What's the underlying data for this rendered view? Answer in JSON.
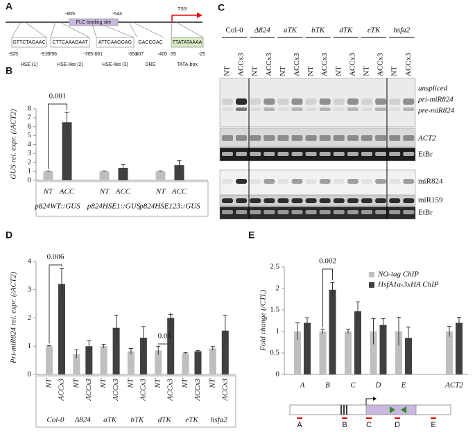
{
  "panel_a": {
    "letter": "A",
    "flc_start": "-805",
    "flc_end": "-544",
    "flc_label": "FLC binding site",
    "tss": "TSS",
    "elements": [
      {
        "sequence": "GTTCTAGAAC",
        "start": "-925",
        "end": "-915",
        "label": "HSE (1)"
      },
      {
        "sequence": "CTTCAAAGAAT",
        "start": "-796",
        "end": "-785",
        "label": "HSE-like (2)"
      },
      {
        "sequence": "ATTCAAGGAG",
        "start": "-661",
        "end": "-651",
        "label": "HSE-like (3)"
      },
      {
        "sequence": "GACCGAC",
        "start": "-407",
        "end": "-400",
        "label": "DRE"
      },
      {
        "sequence": "TTATATAAAA",
        "start": "-35",
        "end": "-25",
        "label": "TATA-box"
      }
    ]
  },
  "panel_c": {
    "letter": "C",
    "genotypes": [
      "Col-0",
      "Δ824",
      "aTK",
      "bTK",
      "dTK",
      "eTK",
      "hsfa2"
    ],
    "treatments": [
      "NT",
      "ACCx3"
    ],
    "rows": [
      "unspliced",
      "pri-miR824",
      "pre-miR824",
      "ACT2",
      "EtBr",
      "miR824",
      "miR159",
      "EtBr"
    ]
  },
  "chart_data": [
    {
      "type": "bar",
      "panel": "B",
      "ylabel": "GUS rel. expr. (/ACT2)",
      "categories": [
        "p824WT::GUS",
        "p824HSE1::GUS",
        "p824HSE123::GUS"
      ],
      "series": [
        {
          "name": "NT",
          "color": "#bfbfbf",
          "values": [
            1,
            1,
            1
          ],
          "errors": [
            0.03,
            0.03,
            0.03
          ]
        },
        {
          "name": "ACC",
          "color": "#404040",
          "values": [
            6.5,
            1.4,
            1.7
          ],
          "errors": [
            1.1,
            0.35,
            0.5
          ]
        }
      ],
      "ylim": [
        0,
        8
      ],
      "yticks": [
        0,
        1,
        2,
        3,
        4,
        5,
        6,
        7,
        8
      ],
      "annotations": [
        "0.001"
      ]
    },
    {
      "type": "bar",
      "panel": "D",
      "ylabel": "Pri-miR824 rel. expr. (/ACT2)",
      "categories": [
        "Col-0",
        "Δ824",
        "aTK",
        "bTK",
        "dTK",
        "eTK",
        "hsfa2"
      ],
      "series": [
        {
          "name": "NT",
          "color": "#bfbfbf",
          "values": [
            1,
            0.72,
            1.0,
            0.82,
            0.85,
            0.75,
            0.92
          ],
          "errors": [
            0.02,
            0.15,
            0.07,
            0.1,
            0.15,
            0.02,
            0.07
          ]
        },
        {
          "name": "ACCx3",
          "color": "#404040",
          "values": [
            3.2,
            1.0,
            1.65,
            1.3,
            2.0,
            0.82,
            1.55
          ],
          "errors": [
            0.55,
            0.2,
            0.45,
            0.4,
            0.12,
            0.03,
            0.55
          ]
        }
      ],
      "ylim": [
        0,
        4
      ],
      "yticks": [
        0,
        1,
        2,
        3,
        4
      ],
      "annotations": [
        "0.006",
        "0.05"
      ]
    },
    {
      "type": "bar",
      "panel": "E",
      "ylabel": "Fold change (/CTL)",
      "categories": [
        "A",
        "B",
        "C",
        "D",
        "E",
        null,
        "ACT2"
      ],
      "series": [
        {
          "name": "NO-tag ChIP",
          "color": "#bfbfbf",
          "values": [
            1.0,
            1.0,
            1.0,
            1.0,
            1.0,
            null,
            1.0
          ],
          "errors": [
            0.2,
            0.05,
            0.05,
            0.3,
            0.33,
            null,
            0.12
          ]
        },
        {
          "name": "HsfA1a-3xHA ChIP",
          "color": "#404040",
          "values": [
            1.2,
            1.97,
            1.47,
            1.15,
            0.85,
            null,
            1.2
          ],
          "errors": [
            0.12,
            0.17,
            0.22,
            0.15,
            0.25,
            null,
            0.13
          ]
        }
      ],
      "ylim": [
        0,
        2.5
      ],
      "yticks": [
        0,
        0.5,
        1,
        1.5,
        2,
        2.5
      ],
      "annotations": [
        "0.002"
      ],
      "legend": "top-right",
      "map_labels": [
        "A",
        "B",
        "C",
        "D",
        "E"
      ]
    }
  ]
}
